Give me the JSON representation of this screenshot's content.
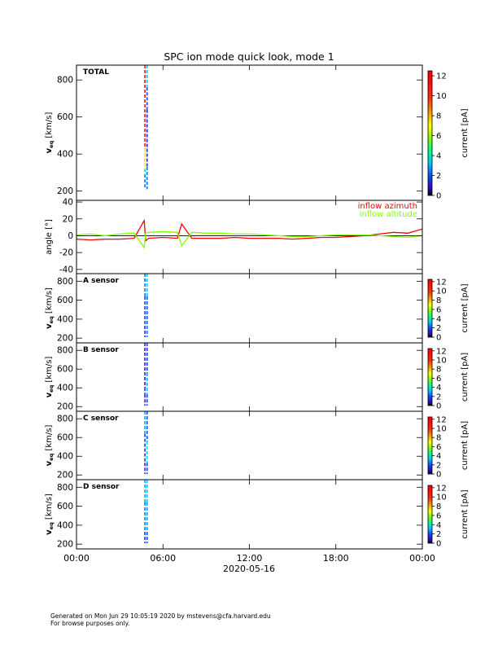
{
  "title": "SPC ion mode quick look, mode 1",
  "date_label": "2020-05-16",
  "footer": {
    "line1": "Generated on Mon Jun 29 10:05:19 2020 by mstevens@cfa.harvard.edu",
    "line2": "For browse purposes only."
  },
  "colorbar_label": "current [pA]",
  "ylabel_v": "v",
  "ylabel_v_sub": "eq",
  "ylabel_v_units": "[km/s]",
  "ylabel_angle": "angle [°]",
  "x_ticks": [
    "00:00",
    "06:00",
    "12:00",
    "18:00",
    "00:00"
  ],
  "colors": {
    "azimuth": "#ff0000",
    "altitude": "#7fff00",
    "zero_line": "#000000"
  },
  "chart_data": [
    {
      "type": "heatmap",
      "name": "total",
      "panel_label": "TOTAL",
      "x_range_hours": [
        0,
        24
      ],
      "ylim": [
        150,
        880
      ],
      "y_ticks": [
        200,
        400,
        600,
        800
      ],
      "colorbar": {
        "ticks": [
          0,
          2,
          4,
          6,
          8,
          10,
          12
        ],
        "range": [
          0,
          12.5
        ]
      },
      "stripes": [
        {
          "x_hours": 4.75,
          "bins": [
            [
              880,
              430,
              10.5
            ],
            [
              430,
              320,
              7
            ],
            [
              320,
              290,
              3.5
            ],
            [
              290,
              210,
              2
            ]
          ]
        },
        {
          "x_hours": 4.9,
          "bins": [
            [
              880,
              760,
              3
            ],
            [
              760,
              640,
              1.5
            ],
            [
              640,
              330,
              0.8
            ],
            [
              330,
              210,
              2
            ]
          ]
        }
      ]
    },
    {
      "type": "line",
      "name": "angles",
      "ylim": [
        -45,
        42
      ],
      "y_ticks": [
        -40,
        -20,
        0,
        20,
        40
      ],
      "legend": [
        "inflow azimuth",
        "inflow altitude"
      ],
      "legend_position": "top-right",
      "x_hours": [
        0,
        1,
        2,
        3,
        4,
        4.7,
        4.8,
        5,
        6,
        7,
        7.3,
        8,
        9,
        10,
        11,
        12,
        13,
        14,
        15,
        16,
        17,
        18,
        19,
        20,
        21,
        22,
        23,
        24
      ],
      "series": [
        {
          "name": "inflow azimuth",
          "color": "#ff0000",
          "values": [
            -4,
            -5,
            -4,
            -4,
            -3,
            18,
            -6,
            -3,
            -2,
            -3,
            14,
            -3,
            -3,
            -3,
            -2,
            -3,
            -3,
            -3,
            -4,
            -3,
            -2,
            -2,
            -1,
            0,
            2,
            4,
            3,
            8
          ]
        },
        {
          "name": "inflow altitude",
          "color": "#7fff00",
          "values": [
            1,
            2,
            0,
            2,
            3,
            -14,
            3,
            4,
            5,
            4,
            -12,
            4,
            3,
            3,
            2,
            2,
            1,
            0,
            -1,
            -1,
            0,
            1,
            1,
            1,
            0,
            -1,
            -2,
            0
          ]
        }
      ]
    },
    {
      "type": "heatmap",
      "name": "a-sensor",
      "panel_label": "A sensor",
      "ylim": [
        150,
        880
      ],
      "y_ticks": [
        200,
        400,
        600,
        800
      ],
      "colorbar": {
        "ticks": [
          0,
          2,
          4,
          6,
          8,
          10,
          12
        ],
        "range": [
          0,
          12.5
        ]
      },
      "stripes": [
        {
          "x_hours": 4.75,
          "bins": [
            [
              880,
              640,
              2
            ],
            [
              640,
              330,
              1
            ],
            [
              330,
              210,
              0.5
            ]
          ]
        },
        {
          "x_hours": 4.9,
          "bins": [
            [
              880,
              640,
              3
            ],
            [
              640,
              330,
              1.5
            ],
            [
              330,
              210,
              2
            ]
          ]
        }
      ]
    },
    {
      "type": "heatmap",
      "name": "b-sensor",
      "panel_label": "B sensor",
      "ylim": [
        150,
        880
      ],
      "y_ticks": [
        200,
        400,
        600,
        800
      ],
      "colorbar": {
        "ticks": [
          0,
          2,
          4,
          6,
          8,
          10,
          12
        ],
        "range": [
          0,
          12.5
        ]
      },
      "stripes": [
        {
          "x_hours": 4.75,
          "bins": [
            [
              880,
              400,
              0.5
            ],
            [
              400,
              330,
              1
            ],
            [
              330,
              210,
              0.3
            ]
          ]
        },
        {
          "x_hours": 4.9,
          "bins": [
            [
              880,
              560,
              1.2
            ],
            [
              560,
              400,
              2.5
            ],
            [
              400,
              330,
              3
            ],
            [
              330,
              210,
              1
            ]
          ]
        }
      ]
    },
    {
      "type": "heatmap",
      "name": "c-sensor",
      "panel_label": "C sensor",
      "ylim": [
        150,
        880
      ],
      "y_ticks": [
        200,
        400,
        600,
        800
      ],
      "colorbar": {
        "ticks": [
          0,
          2,
          4,
          6,
          8,
          10,
          12
        ],
        "range": [
          0,
          12.5
        ]
      },
      "stripes": [
        {
          "x_hours": 4.75,
          "bins": [
            [
              880,
              640,
              2.5
            ],
            [
              640,
              330,
              1
            ],
            [
              330,
              210,
              0.5
            ]
          ]
        },
        {
          "x_hours": 4.9,
          "bins": [
            [
              880,
              560,
              1.5
            ],
            [
              560,
              330,
              3.5
            ],
            [
              330,
              210,
              1
            ]
          ]
        }
      ]
    },
    {
      "type": "heatmap",
      "name": "d-sensor",
      "panel_label": "D sensor",
      "ylim": [
        150,
        880
      ],
      "y_ticks": [
        200,
        400,
        600,
        800
      ],
      "colorbar": {
        "ticks": [
          0,
          2,
          4,
          6,
          8,
          10,
          12
        ],
        "range": [
          0,
          12.5
        ]
      },
      "stripes": [
        {
          "x_hours": 4.75,
          "bins": [
            [
              880,
              640,
              2.5
            ],
            [
              640,
              330,
              2
            ],
            [
              330,
              210,
              1
            ]
          ]
        },
        {
          "x_hours": 4.9,
          "bins": [
            [
              880,
              640,
              3
            ],
            [
              640,
              330,
              2.5
            ],
            [
              330,
              210,
              1.5
            ]
          ]
        }
      ]
    }
  ]
}
